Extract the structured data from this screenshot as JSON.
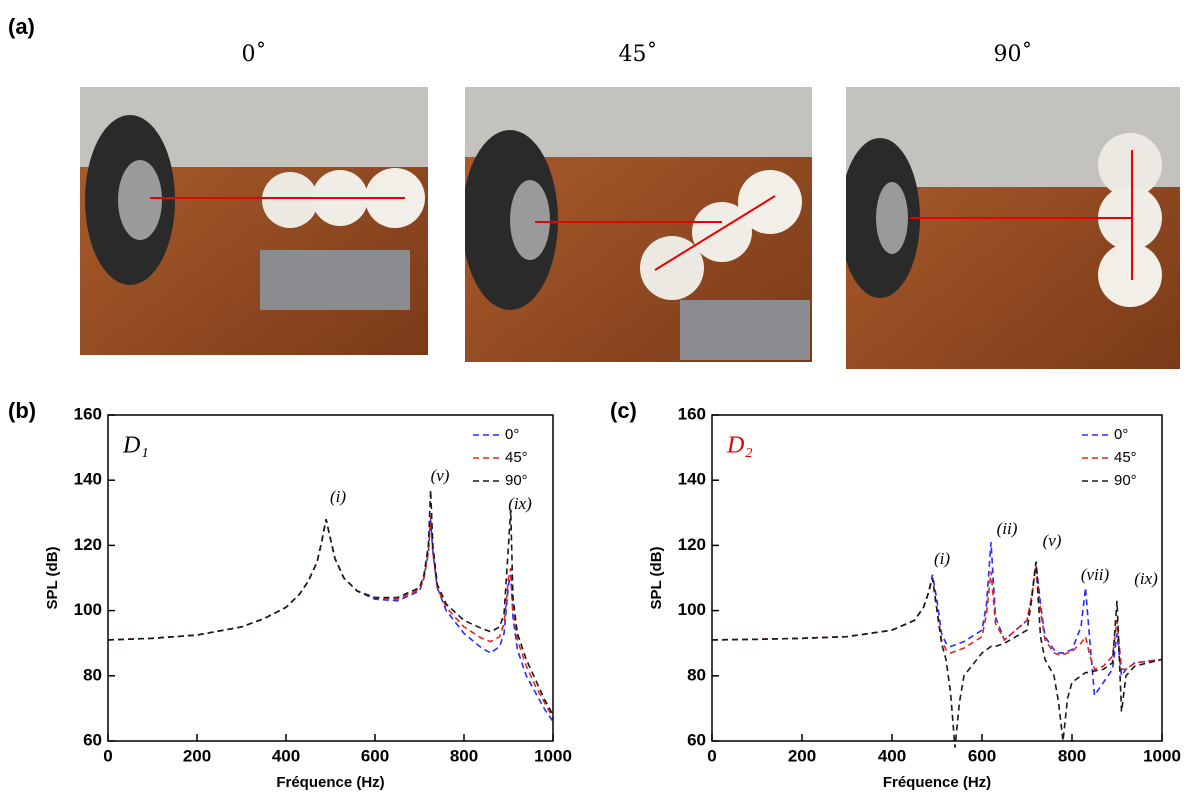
{
  "panel": {
    "label": "(a)",
    "photos": [
      {
        "title": "0˚"
      },
      {
        "title": "45˚"
      },
      {
        "title": "90˚"
      }
    ]
  },
  "chart_data": [
    {
      "type": "line",
      "label": "(b)",
      "annotation": "D₁",
      "annotation_color": "#000000",
      "xlabel": "Fréquence (Hz)",
      "ylabel": "SPL (dB)",
      "legend": "upper right",
      "peak_labels": [
        "(i)",
        "(v)",
        "(ix)"
      ],
      "xlim": [
        0,
        1000
      ],
      "ylim": [
        60,
        160
      ],
      "xticks": [
        0,
        200,
        400,
        600,
        800,
        1000
      ],
      "yticks": [
        60,
        80,
        100,
        120,
        140,
        160
      ],
      "x": [
        0,
        100,
        200,
        300,
        350,
        400,
        430,
        450,
        470,
        480,
        490,
        500,
        510,
        530,
        560,
        600,
        650,
        700,
        710,
        720,
        725,
        730,
        740,
        760,
        800,
        840,
        860,
        880,
        890,
        900,
        905,
        910,
        920,
        940,
        960,
        980,
        1000
      ],
      "series": [
        {
          "name": "0°",
          "color": "#2b2bff",
          "values": [
            91,
            91.5,
            92.5,
            95,
            97.5,
            101,
            105,
            109,
            115,
            121,
            128,
            122,
            116,
            110,
            106,
            103.5,
            103,
            106,
            110,
            118,
            128,
            118,
            107,
            100,
            93,
            88.5,
            87,
            89,
            93,
            108,
            111,
            98,
            88,
            80,
            75,
            70,
            66
          ]
        },
        {
          "name": "45°",
          "color": "#e8231f",
          "values": [
            91,
            91.5,
            92.5,
            95,
            97.5,
            101,
            105,
            109,
            115,
            121,
            128,
            122,
            116,
            110,
            106,
            104,
            103.5,
            106.5,
            110,
            118,
            129,
            118,
            107,
            101,
            95,
            91.5,
            90.5,
            92,
            96,
            110,
            113,
            100,
            91,
            83,
            77,
            72,
            67
          ]
        },
        {
          "name": "90°",
          "color": "#1a1a1a",
          "values": [
            91,
            91.5,
            92.5,
            95,
            97.5,
            101,
            105,
            109,
            115,
            121,
            128,
            122,
            116,
            110,
            106,
            104,
            104,
            107,
            111,
            120,
            137,
            120,
            108,
            102,
            97,
            94.5,
            93.5,
            95,
            99,
            120,
            131,
            104,
            93,
            85,
            79,
            73,
            68
          ]
        }
      ]
    },
    {
      "type": "line",
      "label": "(c)",
      "annotation": "D₂",
      "annotation_color": "#e00000",
      "xlabel": "Fréquence (Hz)",
      "ylabel": "SPL (dB)",
      "legend": "upper right",
      "peak_labels": [
        "(i)",
        "(ii)",
        "(v)",
        "(vii)",
        "(ix)"
      ],
      "xlim": [
        0,
        1000
      ],
      "ylim": [
        60,
        160
      ],
      "xticks": [
        0,
        200,
        400,
        600,
        800,
        1000
      ],
      "yticks": [
        60,
        80,
        100,
        120,
        140,
        160
      ],
      "x": [
        0,
        100,
        200,
        300,
        400,
        450,
        470,
        480,
        490,
        500,
        510,
        520,
        530,
        540,
        550,
        560,
        600,
        610,
        620,
        630,
        650,
        700,
        710,
        720,
        730,
        740,
        760,
        770,
        780,
        790,
        800,
        820,
        830,
        840,
        850,
        870,
        890,
        900,
        910,
        920,
        940,
        1000
      ],
      "series": [
        {
          "name": "0°",
          "color": "#2b2bff",
          "values": [
            91,
            91.2,
            91.5,
            92,
            94,
            97,
            101,
            105,
            111,
            103,
            93,
            90,
            89,
            89.5,
            90,
            90.5,
            94,
            102,
            121,
            98,
            91,
            97,
            104,
            115,
            102,
            92,
            88,
            87,
            87,
            87.5,
            88,
            95,
            107,
            90,
            74,
            78,
            82,
            93,
            80,
            82,
            84,
            85
          ]
        },
        {
          "name": "45°",
          "color": "#e8231f",
          "values": [
            91,
            91.2,
            91.5,
            92,
            94,
            97,
            101,
            105,
            110,
            100,
            91,
            88,
            87,
            87.5,
            88,
            88.5,
            92,
            99,
            112,
            96,
            91,
            97,
            104,
            114,
            100,
            91,
            87,
            86.5,
            86.5,
            87,
            87.5,
            90,
            92,
            86,
            82,
            83,
            86,
            97,
            82,
            82,
            84,
            85
          ]
        },
        {
          "name": "90°",
          "color": "#1a1a1a",
          "values": [
            91,
            91.2,
            91.5,
            92,
            94,
            97,
            101,
            105,
            110,
            100,
            90,
            85,
            75,
            58,
            72,
            80,
            87,
            88,
            89,
            89,
            90,
            94,
            103,
            115,
            92,
            85,
            80,
            72,
            60,
            73,
            78,
            80,
            81,
            81,
            81.5,
            82,
            84,
            103,
            69,
            80,
            83,
            85
          ]
        }
      ]
    }
  ]
}
